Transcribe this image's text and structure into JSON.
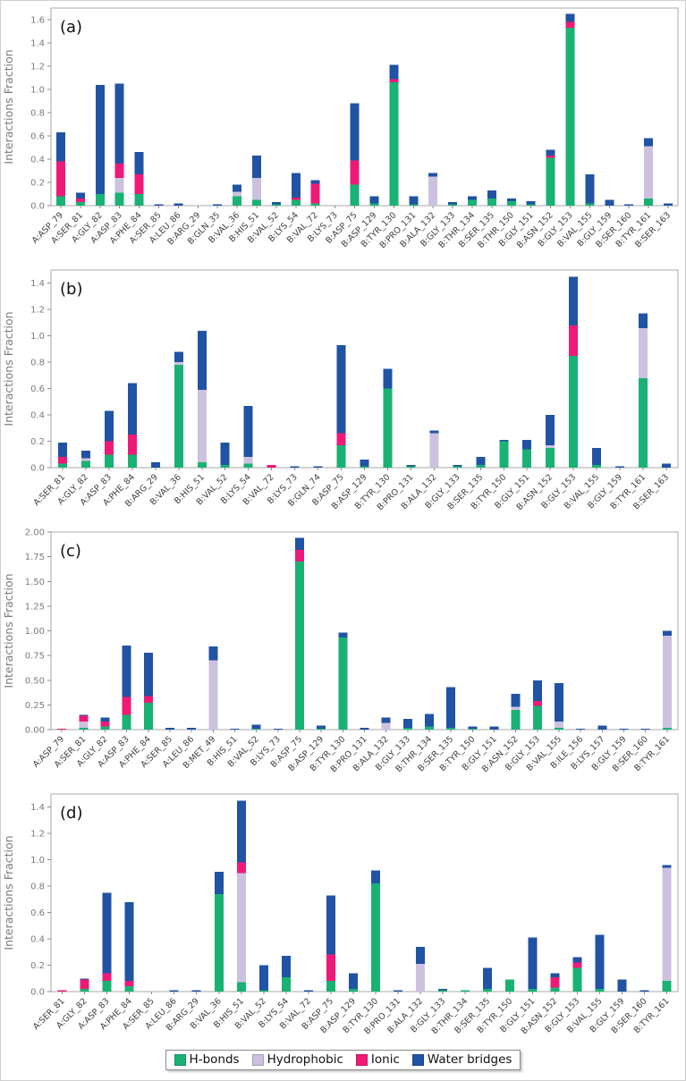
{
  "figure": {
    "ylabel": "Interactions Fraction",
    "panel_labels": [
      "(a)",
      "(b)",
      "(c)",
      "(d)"
    ],
    "legend": [
      {
        "label": "H-bonds",
        "color": "#19b274"
      },
      {
        "label": "Hydrophobic",
        "color": "#cdc1e0"
      },
      {
        "label": "Ionic",
        "color": "#ef1a77"
      },
      {
        "label": "Water bridges",
        "color": "#2053a4"
      }
    ],
    "axis_text_color": "#7b7b7b",
    "tick_label_color": "#3f3f3f",
    "frame_color": "#a8a8a8"
  },
  "chart_data": [
    {
      "type": "bar",
      "stacked": true,
      "id": "a",
      "panel_label": "(a)",
      "ylabel": "Interactions Fraction",
      "ylim": [
        0,
        1.7
      ],
      "ytick_max": 1.6,
      "ytick_step": 0.2,
      "ytick_decimals": 1,
      "grid": false,
      "legend_position": "bottom-shared",
      "categories": [
        "A:ASP_79",
        "A:SER_81",
        "A:GLY_82",
        "A:ASP_83",
        "A:PHE_84",
        "A:SER_85",
        "A:LEU_86",
        "B:ARG_29",
        "B:GLN_35",
        "B:VAL_36",
        "B:HIS_51",
        "B:VAL_52",
        "B:LYS_54",
        "B:VAL_72",
        "B:LYS_73",
        "B:ASP_75",
        "B:ASP_129",
        "B:TYR_130",
        "B:PRO_131",
        "B:ALA_132",
        "B:GLY_133",
        "B:THR_134",
        "B:SER_135",
        "B:THR_150",
        "B:GLY_151",
        "B:ASN_152",
        "B:GLY_153",
        "B:VAL_155",
        "B:GLY_159",
        "B:SER_160",
        "B:TYR_161",
        "B:SER_163"
      ],
      "series": [
        {
          "name": "H-bonds",
          "values": [
            0.08,
            0.03,
            0.1,
            0.11,
            0.1,
            0,
            0,
            0,
            0,
            0.08,
            0.05,
            0.01,
            0.05,
            0.02,
            0,
            0.18,
            0.02,
            1.06,
            0.01,
            0,
            0.01,
            0.05,
            0.06,
            0.04,
            0.01,
            0.41,
            1.53,
            0.02,
            0,
            0,
            0.06,
            0
          ]
        },
        {
          "name": "Hydrophobic",
          "values": [
            0,
            0,
            0,
            0.13,
            0,
            0,
            0,
            0,
            0,
            0.04,
            0.19,
            0,
            0,
            0,
            0,
            0,
            0,
            0,
            0,
            0.25,
            0,
            0,
            0,
            0,
            0,
            0,
            0,
            0,
            0,
            0,
            0.45,
            0
          ]
        },
        {
          "name": "Ionic",
          "values": [
            0.3,
            0.03,
            0,
            0.12,
            0.17,
            0,
            0,
            0,
            0,
            0,
            0,
            0,
            0.02,
            0.17,
            0,
            0.21,
            0,
            0.03,
            0,
            0,
            0,
            0,
            0,
            0,
            0,
            0.02,
            0.05,
            0,
            0,
            0,
            0,
            0
          ]
        },
        {
          "name": "Water bridges",
          "values": [
            0.25,
            0.05,
            0.94,
            0.69,
            0.19,
            0.01,
            0.02,
            0,
            0.01,
            0.06,
            0.19,
            0.02,
            0.21,
            0.03,
            0,
            0.49,
            0.06,
            0.12,
            0.07,
            0.03,
            0.02,
            0.03,
            0.07,
            0.02,
            0.03,
            0.05,
            0.07,
            0.25,
            0.05,
            0.01,
            0.07,
            0.02
          ]
        }
      ]
    },
    {
      "type": "bar",
      "stacked": true,
      "id": "b",
      "panel_label": "(b)",
      "ylabel": "Interactions Fraction",
      "ylim": [
        0,
        1.5
      ],
      "ytick_max": 1.4,
      "ytick_step": 0.2,
      "ytick_decimals": 1,
      "grid": false,
      "legend_position": "bottom-shared",
      "categories": [
        "A:SER_81",
        "A:GLY_82",
        "A:ASP_83",
        "A:PHE_84",
        "B:ARG_29",
        "B:VAL_36",
        "B:HIS_51",
        "B:VAL_52",
        "B:LYS_54",
        "B:VAL_72",
        "B:LYS_73",
        "B:GLN_74",
        "B:ASP_75",
        "B:ASP_129",
        "B:TYR_130",
        "B:PRO_131",
        "B:ALA_132",
        "B:GLY_133",
        "B:SER_135",
        "B:TYR_150",
        "B:GLY_151",
        "B:ASN_152",
        "B:GLY_153",
        "B:VAL_155",
        "B:GLY_159",
        "B:TYR_161",
        "B:SER_163"
      ],
      "series": [
        {
          "name": "H-bonds",
          "values": [
            0.03,
            0.05,
            0.1,
            0.1,
            0,
            0.78,
            0.04,
            0.02,
            0.03,
            0,
            0,
            0,
            0.17,
            0.01,
            0.6,
            0.01,
            0,
            0.01,
            0.02,
            0.2,
            0.14,
            0.15,
            0.85,
            0.02,
            0,
            0.68,
            0
          ]
        },
        {
          "name": "Hydrophobic",
          "values": [
            0,
            0.02,
            0,
            0,
            0,
            0.02,
            0.55,
            0,
            0.05,
            0,
            0,
            0,
            0,
            0,
            0,
            0,
            0.26,
            0,
            0,
            0,
            0,
            0.02,
            0,
            0,
            0,
            0.38,
            0
          ]
        },
        {
          "name": "Ionic",
          "values": [
            0.05,
            0,
            0.1,
            0.15,
            0,
            0,
            0,
            0,
            0,
            0.02,
            0,
            0,
            0.09,
            0,
            0,
            0,
            0,
            0,
            0,
            0,
            0,
            0,
            0.23,
            0,
            0,
            0,
            0
          ]
        },
        {
          "name": "Water bridges",
          "values": [
            0.11,
            0.06,
            0.23,
            0.39,
            0.04,
            0.08,
            0.45,
            0.17,
            0.39,
            0,
            0.01,
            0.01,
            0.67,
            0.05,
            0.15,
            0.01,
            0.02,
            0.01,
            0.06,
            0.01,
            0.07,
            0.23,
            0.37,
            0.13,
            0.01,
            0.11,
            0.03
          ]
        }
      ]
    },
    {
      "type": "bar",
      "stacked": true,
      "id": "c",
      "panel_label": "(c)",
      "ylabel": "Interactions Fraction",
      "ylim": [
        0,
        2.0
      ],
      "ytick_max": 2.0,
      "ytick_step": 0.25,
      "ytick_decimals": 2,
      "grid": false,
      "legend_position": "bottom-shared",
      "categories": [
        "A:ASP_79",
        "A:SER_81",
        "A:GLY_82",
        "A:ASP_83",
        "A:PHE_84",
        "A:SER_85",
        "A:LEU_86",
        "B:MET_49",
        "B:HIS_51",
        "B:VAL_52",
        "B:LYS_73",
        "B:ASP_75",
        "B:ASP_129",
        "B:TYR_130",
        "B:PRO_131",
        "B:ALA_132",
        "B:GLY_133",
        "B:THR_134",
        "B:SER_135",
        "B:TYR_150",
        "B:GLY_151",
        "B:ASN_152",
        "B:GLY_153",
        "B:VAL_155",
        "B:ILE_156",
        "B:LYS_157",
        "B:GLY_159",
        "B:SER_160",
        "B:TYR_161"
      ],
      "series": [
        {
          "name": "H-bonds",
          "values": [
            0,
            0.02,
            0.03,
            0.15,
            0.27,
            0,
            0,
            0,
            0,
            0.01,
            0,
            1.7,
            0.01,
            0.93,
            0,
            0,
            0.02,
            0.03,
            0.02,
            0.01,
            0,
            0.2,
            0.24,
            0.02,
            0,
            0,
            0,
            0,
            0.02
          ]
        },
        {
          "name": "Hydrophobic",
          "values": [
            0,
            0.06,
            0,
            0,
            0,
            0,
            0,
            0.7,
            0,
            0,
            0,
            0,
            0,
            0,
            0,
            0.07,
            0,
            0,
            0,
            0,
            0,
            0.03,
            0,
            0.06,
            0,
            0,
            0,
            0,
            0.93
          ]
        },
        {
          "name": "Ionic",
          "values": [
            0.01,
            0.06,
            0.05,
            0.18,
            0.07,
            0,
            0,
            0,
            0,
            0,
            0,
            0.12,
            0,
            0,
            0,
            0,
            0,
            0,
            0,
            0,
            0,
            0,
            0.05,
            0,
            0,
            0,
            0,
            0,
            0
          ]
        },
        {
          "name": "Water bridges",
          "values": [
            0,
            0.01,
            0.04,
            0.52,
            0.44,
            0.02,
            0.02,
            0.14,
            0.01,
            0.04,
            0.01,
            0.12,
            0.03,
            0.05,
            0.02,
            0.05,
            0.09,
            0.13,
            0.41,
            0.02,
            0.03,
            0.13,
            0.21,
            0.39,
            0.01,
            0.04,
            0.01,
            0.01,
            0.05
          ]
        }
      ]
    },
    {
      "type": "bar",
      "stacked": true,
      "id": "d",
      "panel_label": "(d)",
      "ylabel": "Interactions Fraction",
      "ylim": [
        0,
        1.5
      ],
      "ytick_max": 1.4,
      "ytick_step": 0.2,
      "ytick_decimals": 1,
      "grid": false,
      "legend_position": "bottom-shared",
      "categories": [
        "A:SER_81",
        "A:GLY_82",
        "A:ASP_83",
        "A:PHE_84",
        "A:SER_85",
        "A:LEU_86",
        "B:ARG_29",
        "B:VAL_36",
        "B:HIS_51",
        "B:VAL_52",
        "B:LYS_54",
        "B:VAL_72",
        "B:ASP_75",
        "B:ASP_129",
        "B:TYR_130",
        "B:PRO_131",
        "B:ALA_132",
        "B:GLY_133",
        "B:THR_134",
        "B:SER_135",
        "B:TYR_150",
        "B:GLY_151",
        "B:ASN_152",
        "B:GLY_153",
        "B:VAL_155",
        "B:GLY_159",
        "B:SER_160",
        "B:TYR_161"
      ],
      "series": [
        {
          "name": "H-bonds",
          "values": [
            0,
            0.02,
            0.08,
            0.04,
            0,
            0,
            0,
            0.74,
            0.07,
            0.01,
            0.11,
            0,
            0.08,
            0.02,
            0.82,
            0,
            0,
            0.01,
            0.01,
            0.02,
            0.09,
            0.02,
            0.03,
            0.18,
            0.02,
            0,
            0,
            0.08
          ]
        },
        {
          "name": "Hydrophobic",
          "values": [
            0,
            0,
            0,
            0,
            0,
            0,
            0,
            0,
            0.83,
            0,
            0,
            0,
            0,
            0,
            0,
            0,
            0.21,
            0,
            0,
            0,
            0,
            0,
            0,
            0,
            0,
            0,
            0,
            0.86
          ]
        },
        {
          "name": "Ionic",
          "values": [
            0.01,
            0.07,
            0.06,
            0.04,
            0,
            0,
            0,
            0,
            0.08,
            0,
            0,
            0,
            0.2,
            0,
            0,
            0,
            0,
            0,
            0,
            0,
            0,
            0,
            0.08,
            0.04,
            0,
            0,
            0,
            0
          ]
        },
        {
          "name": "Water bridges",
          "values": [
            0,
            0.01,
            0.61,
            0.6,
            0,
            0.01,
            0.01,
            0.17,
            0.47,
            0.19,
            0.16,
            0.01,
            0.45,
            0.12,
            0.1,
            0.01,
            0.13,
            0.01,
            0,
            0.16,
            0,
            0.39,
            0.03,
            0.04,
            0.41,
            0.09,
            0.01,
            0.02
          ]
        }
      ]
    }
  ]
}
